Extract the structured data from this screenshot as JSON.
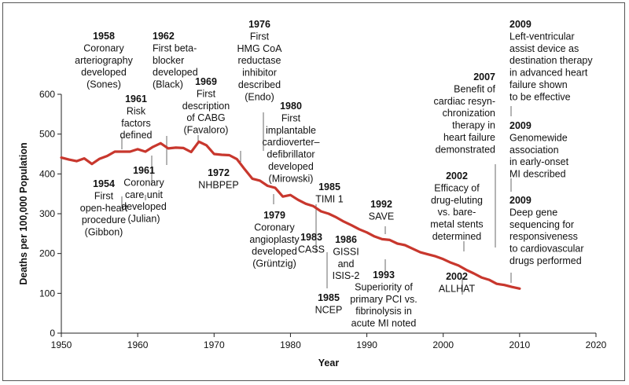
{
  "chart_data": {
    "type": "line",
    "xlabel": "Year",
    "ylabel": "Deaths per 100,000 Population",
    "xlim": [
      1950,
      2020
    ],
    "ylim": [
      0,
      600
    ],
    "xticks": [
      1950,
      1960,
      1970,
      1980,
      1990,
      2000,
      2010,
      2020
    ],
    "yticks": [
      0,
      100,
      200,
      300,
      400,
      500,
      600
    ],
    "series": [
      {
        "color": "#c8372d",
        "points": [
          [
            1950,
            441
          ],
          [
            1951,
            436
          ],
          [
            1952,
            432
          ],
          [
            1953,
            439
          ],
          [
            1954,
            425
          ],
          [
            1955,
            438
          ],
          [
            1956,
            445
          ],
          [
            1957,
            456
          ],
          [
            1958,
            456
          ],
          [
            1959,
            456
          ],
          [
            1960,
            462
          ],
          [
            1961,
            456
          ],
          [
            1962,
            468
          ],
          [
            1963,
            477
          ],
          [
            1964,
            464
          ],
          [
            1965,
            466
          ],
          [
            1966,
            465
          ],
          [
            1967,
            455
          ],
          [
            1968,
            481
          ],
          [
            1969,
            472
          ],
          [
            1970,
            450
          ],
          [
            1971,
            448
          ],
          [
            1972,
            447
          ],
          [
            1973,
            437
          ],
          [
            1974,
            412
          ],
          [
            1975,
            388
          ],
          [
            1976,
            383
          ],
          [
            1977,
            370
          ],
          [
            1978,
            365
          ],
          [
            1979,
            343
          ],
          [
            1980,
            347
          ],
          [
            1981,
            335
          ],
          [
            1982,
            325
          ],
          [
            1983,
            319
          ],
          [
            1984,
            306
          ],
          [
            1985,
            300
          ],
          [
            1986,
            291
          ],
          [
            1987,
            280
          ],
          [
            1988,
            271
          ],
          [
            1989,
            261
          ],
          [
            1990,
            253
          ],
          [
            1991,
            243
          ],
          [
            1992,
            236
          ],
          [
            1993,
            234
          ],
          [
            1994,
            225
          ],
          [
            1995,
            221
          ],
          [
            1996,
            212
          ],
          [
            1997,
            203
          ],
          [
            1998,
            198
          ],
          [
            1999,
            193
          ],
          [
            2000,
            186
          ],
          [
            2001,
            177
          ],
          [
            2002,
            170
          ],
          [
            2003,
            159
          ],
          [
            2004,
            150
          ],
          [
            2005,
            140
          ],
          [
            2006,
            134
          ],
          [
            2007,
            124
          ],
          [
            2008,
            121
          ],
          [
            2009,
            116
          ],
          [
            2010,
            112
          ]
        ]
      }
    ],
    "annotations": [
      {
        "year": "1954",
        "lines": [
          "First",
          "open-heart",
          "procedure",
          "(Gibbon)"
        ]
      },
      {
        "year": "1958",
        "lines": [
          "Coronary",
          "arteriography",
          "developed",
          "(Sones)"
        ]
      },
      {
        "year": "1961",
        "lines": [
          "Risk",
          "factors",
          "defined"
        ]
      },
      {
        "year": "1961",
        "lines": [
          "Coronary",
          "care unit",
          "developed",
          "(Julian)"
        ]
      },
      {
        "year": "1962",
        "lines": [
          "First beta-",
          "blocker",
          "developed",
          "(Black)"
        ]
      },
      {
        "year": "1969",
        "lines": [
          "First",
          "description",
          "of CABG",
          "(Favaloro)"
        ]
      },
      {
        "year": "1972",
        "lines": [
          "NHBPEP"
        ]
      },
      {
        "year": "1976",
        "lines": [
          "First",
          "HMG CoA",
          "reductase",
          "inhibitor",
          "described",
          "(Endo)"
        ]
      },
      {
        "year": "1980",
        "lines": [
          "First",
          "implantable",
          "cardioverter–",
          "defibrillator",
          "developed",
          "(Mirowski)"
        ]
      },
      {
        "year": "1979",
        "lines": [
          "Coronary",
          "angioplasty",
          "developed",
          "(Grüntzig)"
        ]
      },
      {
        "year": "1983",
        "lines": [
          "CASS"
        ]
      },
      {
        "year": "1985",
        "lines": [
          "TIMI 1"
        ]
      },
      {
        "year": "1985",
        "lines": [
          "NCEP"
        ]
      },
      {
        "year": "1986",
        "lines": [
          "GISSI",
          "and",
          "ISIS-2"
        ]
      },
      {
        "year": "1992",
        "lines": [
          "SAVE"
        ]
      },
      {
        "year": "1993",
        "lines": [
          "Superiority of",
          "primary PCI vs.",
          "fibrinolysis in",
          "acute MI noted"
        ]
      },
      {
        "year": "2002",
        "lines": [
          "Efficacy of",
          "drug-eluting",
          "vs. bare-",
          "metal stents",
          "determined"
        ]
      },
      {
        "year": "2002",
        "lines": [
          "ALLHAT"
        ]
      },
      {
        "year": "2007",
        "lines": [
          "Benefit of",
          "cardiac resyn-",
          "chronization",
          "therapy in",
          "heart failure",
          "demonstrated"
        ]
      },
      {
        "year": "2009",
        "lines": [
          "Left-ventricular",
          "assist device as",
          "destination therapy",
          "in advanced heart",
          "failure shown",
          "to be effective"
        ]
      },
      {
        "year": "2009",
        "lines": [
          "Genomewide",
          "association",
          "in early-onset",
          "MI described"
        ]
      },
      {
        "year": "2009",
        "lines": [
          "Deep gene",
          "sequencing for",
          "responsiveness",
          "to cardiovascular",
          "drugs performed"
        ]
      }
    ]
  }
}
